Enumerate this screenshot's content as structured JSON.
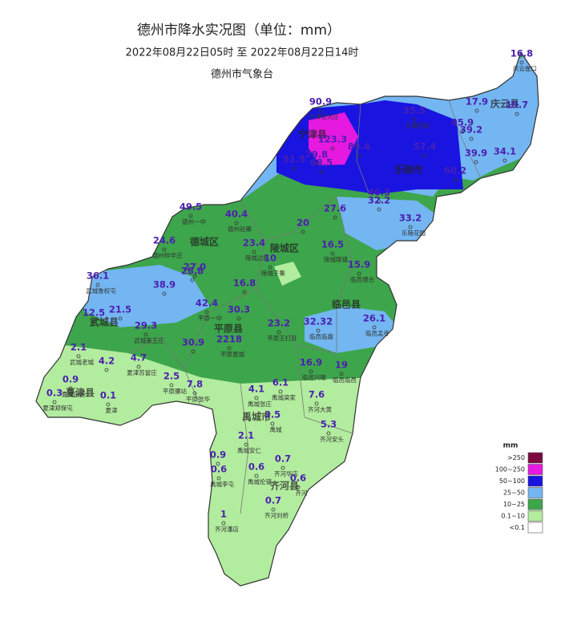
{
  "header": {
    "title": "德州市降水实况图（单位：mm）",
    "period": "2022年08月22日05时  至  2022年08月22日14时",
    "agency": "德州市气象台"
  },
  "legend": {
    "title": "mm",
    "items": [
      {
        "label": ">250",
        "color": "#7b0b3f"
      },
      {
        "label": "100~250",
        "color": "#e619e0"
      },
      {
        "label": "50~100",
        "color": "#1a14e0"
      },
      {
        "label": "25~50",
        "color": "#73b6f2"
      },
      {
        "label": "10~25",
        "color": "#3da54b"
      },
      {
        "label": "0.1~10",
        "color": "#b2ec9e"
      },
      {
        "label": "<0.1",
        "color": "#ffffff"
      }
    ]
  },
  "regions": [
    "庆云县",
    "宁津县",
    "乐陵市",
    "德城区",
    "陵城区",
    "临邑县",
    "平原县",
    "武城县",
    "夏津县",
    "禹城市",
    "齐河县"
  ],
  "stations": [
    {
      "value": "16.8",
      "name": "庆云崔口"
    },
    {
      "value": "90.9",
      "name": "宁津张大庄"
    },
    {
      "value": "35.5",
      "name": "乐陵西段"
    },
    {
      "value": "17.9"
    },
    {
      "value": "19.7"
    },
    {
      "value": "45.9"
    },
    {
      "value": "39.2"
    },
    {
      "value": "123.3"
    },
    {
      "value": "89.4"
    },
    {
      "value": "57.4"
    },
    {
      "value": "79.8"
    },
    {
      "value": "51.5"
    },
    {
      "value": "68.5"
    },
    {
      "value": "39.9"
    },
    {
      "value": "34.1"
    },
    {
      "value": "60.2"
    },
    {
      "value": "40.3"
    },
    {
      "value": "32.2"
    },
    {
      "value": "49.5",
      "name": "德州一中"
    },
    {
      "value": "40.4",
      "name": "德州赵寨"
    },
    {
      "value": "27.6"
    },
    {
      "value": "33.2",
      "name": "乐陵花园"
    },
    {
      "value": "20"
    },
    {
      "value": "24.6",
      "name": "德州仲辛庄"
    },
    {
      "value": "23.4",
      "name": "陵城边临"
    },
    {
      "value": "16.5",
      "name": "陵城糜镇"
    },
    {
      "value": "10",
      "name": "陵城于集"
    },
    {
      "value": "15.9",
      "name": "临邑理合"
    },
    {
      "value": "27.0"
    },
    {
      "value": "28.8"
    },
    {
      "value": "36.1",
      "name": "武城鲁权屯"
    },
    {
      "value": "38.9"
    },
    {
      "value": "16.8"
    },
    {
      "value": "42.4",
      "name": "平原一中"
    },
    {
      "value": "30.3"
    },
    {
      "value": "12.5"
    },
    {
      "value": "21.5"
    },
    {
      "value": "29.3",
      "name": "武城董王庄"
    },
    {
      "value": "23.2",
      "name": "平原王打卦"
    },
    {
      "value": "32.32",
      "name": "临邑临盘"
    },
    {
      "value": "26.1",
      "name": "临邑孟寺"
    },
    {
      "value": "2.1",
      "name": "武城老城"
    },
    {
      "value": "4.2"
    },
    {
      "value": "4.7",
      "name": "夏津苏留庄"
    },
    {
      "value": "30.9"
    },
    {
      "value": "2218",
      "name": "平原恩城"
    },
    {
      "value": "16.9",
      "name": "临邑兴隆"
    },
    {
      "value": "19",
      "name": "临邑临邑"
    },
    {
      "value": "0.9",
      "name": "夏津田庄"
    },
    {
      "value": "2.5",
      "name": "平原腰站"
    },
    {
      "value": "7.8",
      "name": "平原张华"
    },
    {
      "value": "6.1",
      "name": "禹城梁家"
    },
    {
      "value": "0.3",
      "name": "夏津郑保屯"
    },
    {
      "value": "0.1",
      "name": "夏津"
    },
    {
      "value": "4.1",
      "name": "禹城张庄"
    },
    {
      "value": "7.6",
      "name": "齐河大黄"
    },
    {
      "value": "3.5",
      "name": "禹城"
    },
    {
      "value": "5.3",
      "name": "齐河安头"
    },
    {
      "value": "2.1",
      "name": "禹城安仁"
    },
    {
      "value": "0.9"
    },
    {
      "value": "0.7",
      "name": "齐河华店"
    },
    {
      "value": "0.6",
      "name": "禹城伦镇"
    },
    {
      "value": "0.6",
      "name": "禹城李屯"
    },
    {
      "value": "0.6",
      "name": "齐河"
    },
    {
      "value": "0.7",
      "name": "齐河刘桥"
    },
    {
      "value": "1",
      "name": "齐河潘店"
    }
  ]
}
